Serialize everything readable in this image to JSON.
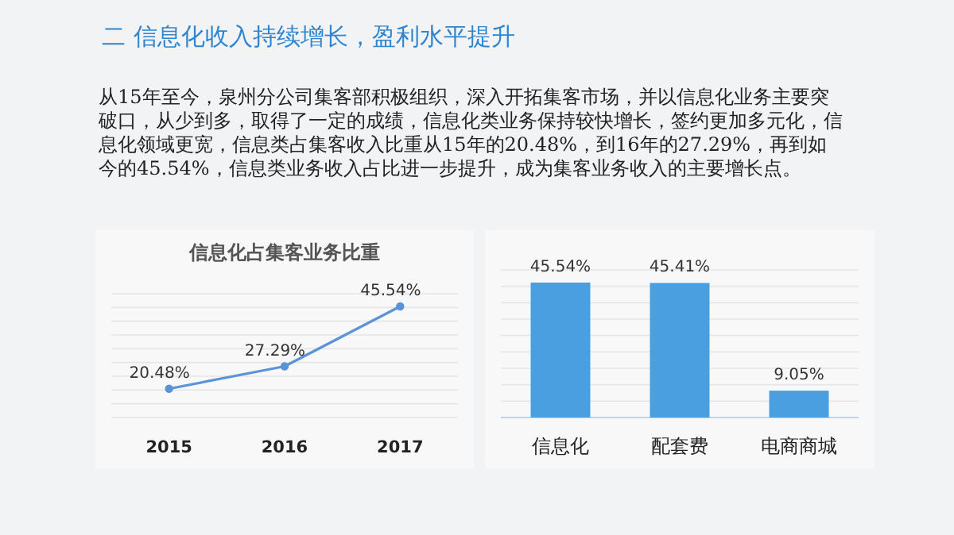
{
  "chart_data": [
    {
      "type": "other",
      "title": "二 信息化收入持续增长，盈利水平提升",
      "annotations": [
        "从15年至今，泉州分公司集客部积极组织，深入开拓集客市场，并以信息化业务主要突破口，从少到多，取得了一定的成绩，信息化类业务保持较快增长，签约更加多元化，信息化领域更宽，信息类占集客收入比重从15年的20.48%，到16年的27.29%，再到如今的45.54%，信息类业务收入占比进一步提升，成为集客业务收入的主要增长点。"
      ]
    },
    {
      "type": "line",
      "title": "信息化占集客业务比重",
      "categories": [
        "2015",
        "2016",
        "2017"
      ],
      "color": "#5b93d8",
      "marker": "circle",
      "grid": true,
      "values": [
        20.48,
        27.29,
        45.54
      ],
      "value_labels": [
        "20.48%",
        "27.29%",
        "45.54%"
      ]
    },
    {
      "type": "bar",
      "categories": [
        "信息化",
        "配套费",
        "电商商城"
      ],
      "color": "#4a9fe0",
      "grid": true,
      "values": [
        45.54,
        45.41,
        9.05
      ],
      "value_labels": [
        "45.54%",
        "45.41%",
        "9.05%"
      ]
    }
  ]
}
